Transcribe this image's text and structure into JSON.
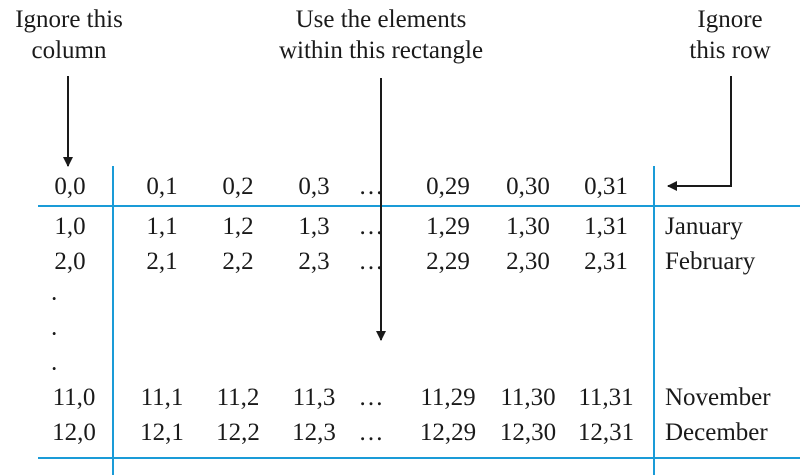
{
  "annotations": {
    "ignore_column": [
      "Ignore this",
      "column"
    ],
    "use_rectangle": [
      "Use the elements",
      "within this rectangle"
    ],
    "ignore_row": [
      "Ignore",
      "this row"
    ]
  },
  "table": {
    "header_row": [
      "0,0",
      "0,1",
      "0,2",
      "0,3",
      "…",
      "0,29",
      "0,30",
      "0,31"
    ],
    "rows": [
      {
        "cells": [
          "1,0",
          "1,1",
          "1,2",
          "1,3",
          "…",
          "1,29",
          "1,30",
          "1,31"
        ],
        "month": "January"
      },
      {
        "cells": [
          "2,0",
          "2,1",
          "2,2",
          "2,3",
          "…",
          "2,29",
          "2,30",
          "2,31"
        ],
        "month": "February"
      },
      {
        "cells": [
          "11,0",
          "11,1",
          "11,2",
          "11,3",
          "…",
          "11,29",
          "11,30",
          "11,31"
        ],
        "month": "November"
      },
      {
        "cells": [
          "12,0",
          "12,1",
          "12,2",
          "12,3",
          "…",
          "12,29",
          "12,30",
          "12,31"
        ],
        "month": "December"
      }
    ],
    "vertical_ellipsis": [
      "·",
      "·",
      "·"
    ]
  },
  "colors": {
    "rule_lines": "#1a9bd7",
    "arrows": "#1a1a1a",
    "text": "#1a1a1a"
  }
}
